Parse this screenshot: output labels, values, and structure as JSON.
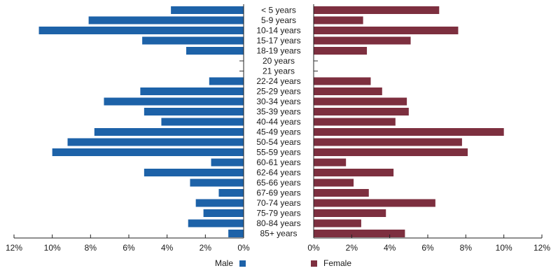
{
  "chart_data": {
    "type": "bar",
    "orientation": "horizontal",
    "layout": "population-pyramid",
    "categories": [
      "< 5 years",
      "5-9 years",
      "10-14 years",
      "15-17 years",
      "18-19 years",
      "20 years",
      "21 years",
      "22-24 years",
      "25-29 years",
      "30-34 years",
      "35-39 years",
      "40-44 years",
      "45-49 years",
      "50-54 years",
      "55-59 years",
      "60-61 years",
      "62-64 years",
      "65-66 years",
      "67-69 years",
      "70-74 years",
      "75-79 years",
      "80-84 years",
      "85+ years"
    ],
    "series": [
      {
        "name": "Male",
        "color": "#1d62a8",
        "values": [
          3.8,
          8.1,
          10.7,
          5.3,
          3.0,
          0,
          0,
          1.8,
          5.4,
          7.3,
          5.2,
          4.3,
          7.8,
          9.2,
          10.0,
          1.7,
          5.2,
          2.8,
          1.3,
          2.5,
          2.1,
          2.9,
          0.8
        ]
      },
      {
        "name": "Female",
        "color": "#7d2f3f",
        "values": [
          6.6,
          2.6,
          7.6,
          5.1,
          2.8,
          0,
          0,
          3.0,
          3.6,
          4.9,
          5.0,
          4.3,
          10.0,
          7.8,
          8.1,
          1.7,
          4.2,
          2.1,
          2.9,
          6.4,
          3.8,
          2.5,
          4.8
        ]
      }
    ],
    "xlim_male": [
      0,
      12
    ],
    "xlim_female": [
      0,
      12
    ],
    "xticks": [
      0,
      2,
      4,
      6,
      8,
      10,
      12
    ],
    "male_tick_labels": [
      "0%",
      "2%",
      "4%",
      "6%",
      "8%",
      "10%",
      "12%"
    ],
    "female_tick_labels": [
      "0%",
      "2%",
      "4%",
      "6%",
      "8%",
      "10%",
      "12%"
    ],
    "grid": false,
    "legend_position": "bottom"
  },
  "legend": {
    "male_label": "Male",
    "female_label": "Female"
  }
}
